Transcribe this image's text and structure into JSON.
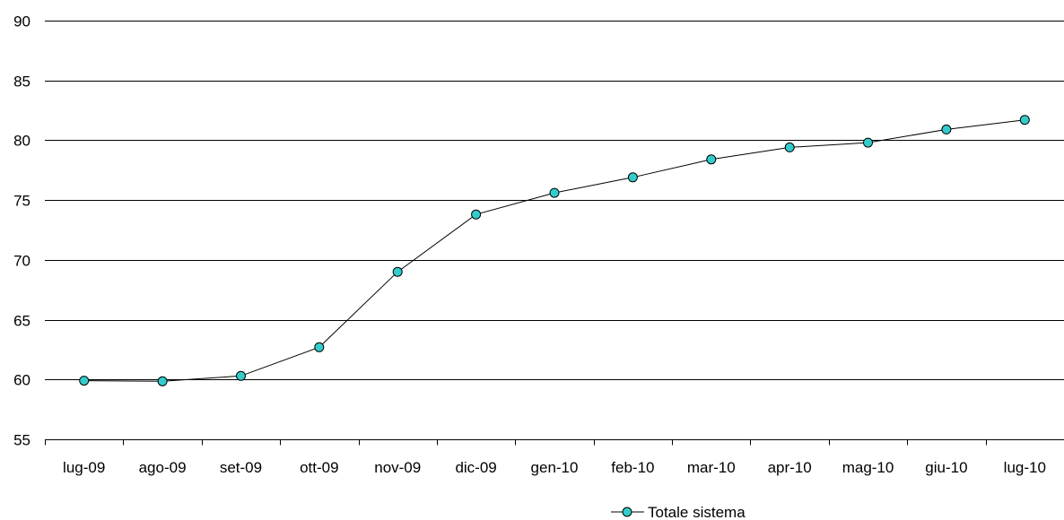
{
  "chart_data": {
    "type": "line",
    "title": "",
    "xlabel": "",
    "ylabel": "",
    "categories": [
      "lug-09",
      "ago-09",
      "set-09",
      "ott-09",
      "nov-09",
      "dic-09",
      "gen-10",
      "feb-10",
      "mar-10",
      "apr-10",
      "mag-10",
      "giu-10",
      "lug-10"
    ],
    "series": [
      {
        "name": "Totale sistema",
        "values": [
          59.9,
          59.85,
          60.3,
          62.7,
          69.0,
          73.8,
          75.6,
          76.9,
          78.4,
          79.4,
          79.8,
          80.9,
          81.7
        ]
      }
    ],
    "ylim": [
      55,
      90
    ],
    "yticks": [
      "55",
      "60",
      "65",
      "70",
      "75",
      "80",
      "85",
      "90"
    ],
    "grid": true,
    "legend_position": "bottom-right",
    "colors": {
      "line": "#000000",
      "marker_fill": "#33CCCC",
      "marker_stroke": "#000000",
      "grid": "#000000"
    }
  }
}
